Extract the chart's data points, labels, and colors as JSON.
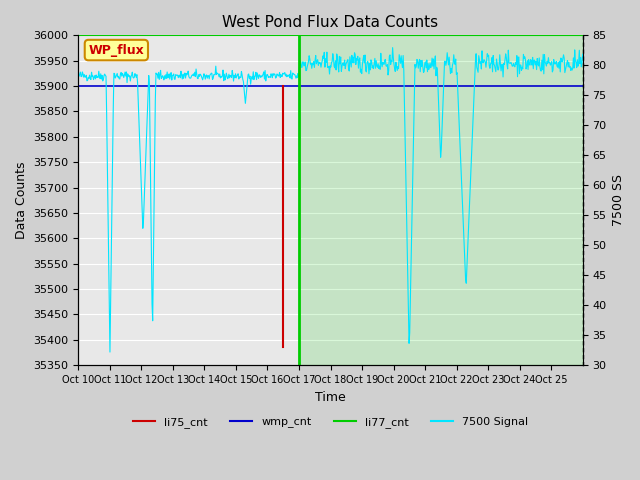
{
  "title": "West Pond Flux Data Counts",
  "xlabel": "Time",
  "ylabel_left": "Data Counts",
  "ylabel_right": "7500 SS",
  "ylim_left": [
    35350,
    36000
  ],
  "ylim_right": [
    30,
    85
  ],
  "yticks_left": [
    35350,
    35400,
    35450,
    35500,
    35550,
    35600,
    35650,
    35700,
    35750,
    35800,
    35850,
    35900,
    35950,
    36000
  ],
  "yticks_right": [
    30,
    35,
    40,
    45,
    50,
    55,
    60,
    65,
    70,
    75,
    80,
    85
  ],
  "xtick_labels": [
    "Oct 10",
    "Oct 11",
    "Oct 12",
    "Oct 13",
    "Oct 14",
    "Oct 15",
    "Oct 16",
    "Oct 17",
    "Oct 18",
    "Oct 19",
    "Oct 20",
    "Oct 21",
    "Oct 22",
    "Oct 23",
    "Oct 24",
    "Oct 25"
  ],
  "n_days": 16,
  "bg_color": "#d0d0d0",
  "plot_bg_color": "#e8e8e8",
  "li77_cnt_color": "#00cc00",
  "li75_cnt_color": "#cc0000",
  "wmp_cnt_color": "#0000cc",
  "signal_color": "#00e5ff",
  "legend_box_facecolor": "#ffff99",
  "legend_box_edgecolor": "#cc8800",
  "legend_label": "WP_flux",
  "legend_text_color": "#cc0000",
  "grid_color": "#ffffff",
  "li77_vline_day": 7,
  "green_shade_alpha": 0.15
}
